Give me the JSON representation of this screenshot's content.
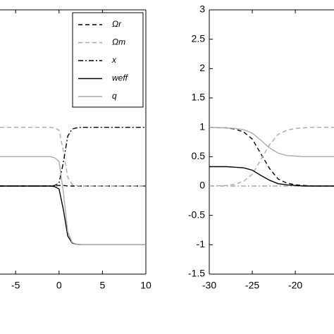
{
  "chart_data": [
    {
      "type": "line",
      "x": [
        -6.8,
        -4,
        -2,
        -1,
        -0.5,
        0,
        0.5,
        1,
        1.5,
        2,
        2.5,
        3,
        5,
        10
      ],
      "xlim": [
        -6.8,
        10
      ],
      "ylim": [
        -1.5,
        3
      ],
      "xticks": [
        -5,
        0,
        5,
        10
      ],
      "legend": "upper right",
      "series": [
        {
          "name": "Ωr",
          "color": "#000000",
          "style": "dashed",
          "values": [
            0,
            0,
            0,
            0,
            0,
            0.01,
            0.01,
            0,
            0,
            0,
            0,
            0,
            0,
            0
          ]
        },
        {
          "name": "Ωm",
          "color": "#aaaaaa",
          "style": "dashed",
          "values": [
            1,
            1,
            1,
            1,
            0.99,
            0.95,
            0.6,
            0.15,
            0.03,
            0.01,
            0,
            0,
            0,
            0
          ]
        },
        {
          "name": "x",
          "color": "#000000",
          "style": "dash-dot",
          "values": [
            0,
            0,
            0,
            0,
            0.01,
            0.05,
            0.4,
            0.85,
            0.97,
            0.99,
            1,
            1,
            1,
            1
          ]
        },
        {
          "name": "weff",
          "color": "#000000",
          "style": "solid",
          "values": [
            0,
            0,
            0,
            0,
            -0.01,
            -0.05,
            -0.4,
            -0.85,
            -0.97,
            -0.99,
            -1,
            -1,
            -1,
            -1
          ]
        },
        {
          "name": "q",
          "color": "#aaaaaa",
          "style": "solid",
          "values": [
            0.5,
            0.5,
            0.5,
            0.5,
            0.48,
            0.42,
            -0.1,
            -0.78,
            -0.96,
            -0.99,
            -1,
            -1,
            -1,
            -1
          ]
        }
      ]
    },
    {
      "type": "line",
      "x": [
        -30,
        -28,
        -27,
        -26,
        -25,
        -24,
        -23,
        -22,
        -21,
        -20,
        -19,
        -18,
        -16.5,
        -15.5
      ],
      "xlim": [
        -30,
        -15.5
      ],
      "ylim": [
        -1.5,
        3
      ],
      "xticks": [
        -30,
        -25,
        -20
      ],
      "yticks": [
        -1.5,
        -1,
        -0.5,
        0,
        0.5,
        1,
        1.5,
        2,
        2.5,
        3
      ],
      "series": [
        {
          "name": "Ωr",
          "color": "#000000",
          "style": "dashed",
          "values": [
            1,
            0.99,
            0.97,
            0.92,
            0.8,
            0.55,
            0.3,
            0.12,
            0.05,
            0.02,
            0.01,
            0,
            0,
            0
          ]
        },
        {
          "name": "Ωm",
          "color": "#aaaaaa",
          "style": "dashed",
          "values": [
            0,
            0.01,
            0.03,
            0.08,
            0.2,
            0.45,
            0.7,
            0.88,
            0.95,
            0.98,
            0.99,
            1,
            1,
            1
          ]
        },
        {
          "name": "x",
          "color": "#aaaaaa",
          "style": "dash-dot",
          "values": [
            0,
            0,
            0,
            0,
            0,
            0,
            0,
            0,
            0,
            0,
            0,
            0,
            0,
            0
          ]
        },
        {
          "name": "weff",
          "color": "#000000",
          "style": "solid",
          "values": [
            0.33,
            0.33,
            0.32,
            0.31,
            0.27,
            0.18,
            0.1,
            0.04,
            0.02,
            0.01,
            0,
            0,
            0,
            0
          ]
        },
        {
          "name": "q",
          "color": "#aaaaaa",
          "style": "solid",
          "values": [
            1,
            0.99,
            0.98,
            0.96,
            0.9,
            0.78,
            0.65,
            0.56,
            0.52,
            0.51,
            0.5,
            0.5,
            0.5,
            0.5
          ]
        }
      ]
    }
  ]
}
